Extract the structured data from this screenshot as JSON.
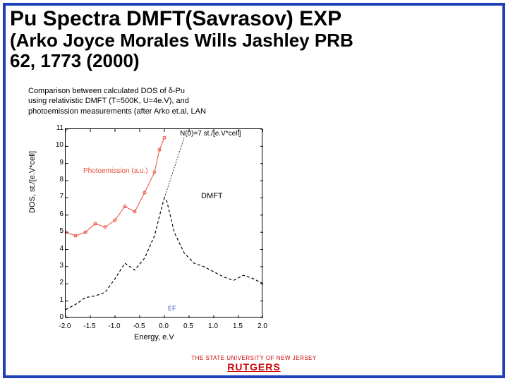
{
  "title": {
    "line1": "Pu Spectra DMFT(Savrasov) EXP",
    "line2": "(Arko Joyce Morales Wills Jashley PRB",
    "line3": "62, 1773 (2000)"
  },
  "chart": {
    "type": "line",
    "title_lines": [
      "Comparison between calculated DOS of δ-Pu",
      "using relativistic DMFT (T=500K, U=4e.V), and",
      "photoemission measurements (after Arko et.al, LAN"
    ],
    "y_label": "DOS, st./[e.V*cell]",
    "x_label": "Energy, e.V",
    "n0_label": "N(0)=7 st./[e.V*cell]",
    "photo_label": "Photoemission (a.u.)",
    "dmft_label": "DMFT",
    "ef_label": "EF",
    "xlim": [
      -2.0,
      2.0
    ],
    "ylim": [
      0,
      11
    ],
    "x_ticks": [
      -2.0,
      -1.5,
      -1.0,
      -0.5,
      0.0,
      0.5,
      1.0,
      1.5,
      2.0
    ],
    "y_ticks": [
      0,
      1,
      2,
      3,
      4,
      5,
      6,
      7,
      8,
      9,
      10,
      11
    ],
    "colors": {
      "dmft_line": "#000000",
      "photo_line": "#e74c3c",
      "photo_marker": "#e74c3c",
      "background": "#ffffff",
      "axis": "#000000",
      "ef_color": "#3355cc"
    },
    "dmft_series": {
      "x": [
        -2.0,
        -1.8,
        -1.6,
        -1.4,
        -1.2,
        -1.0,
        -0.8,
        -0.6,
        -0.4,
        -0.2,
        -0.05,
        0.0,
        0.05,
        0.2,
        0.4,
        0.6,
        0.8,
        1.0,
        1.2,
        1.4,
        1.6,
        1.8,
        2.0
      ],
      "y": [
        0.5,
        0.8,
        1.2,
        1.3,
        1.5,
        2.3,
        3.2,
        2.8,
        3.5,
        4.8,
        6.5,
        7.0,
        6.8,
        5.0,
        3.8,
        3.2,
        3.0,
        2.7,
        2.4,
        2.2,
        2.5,
        2.3,
        2.0
      ],
      "line_style": "dashed",
      "line_width": 1.2
    },
    "photo_series": {
      "x": [
        -2.0,
        -1.8,
        -1.6,
        -1.4,
        -1.2,
        -1.0,
        -0.8,
        -0.6,
        -0.4,
        -0.2,
        -0.1,
        0.0
      ],
      "y": [
        5.0,
        4.8,
        5.0,
        5.5,
        5.3,
        5.7,
        6.5,
        6.2,
        7.3,
        8.5,
        9.8,
        10.5
      ],
      "line_style": "solid",
      "line_width": 1,
      "marker": "circle",
      "marker_size": 4
    }
  },
  "footer": {
    "line1": "THE STATE UNIVERSITY OF NEW JERSEY",
    "line2": "RUTGERS"
  }
}
